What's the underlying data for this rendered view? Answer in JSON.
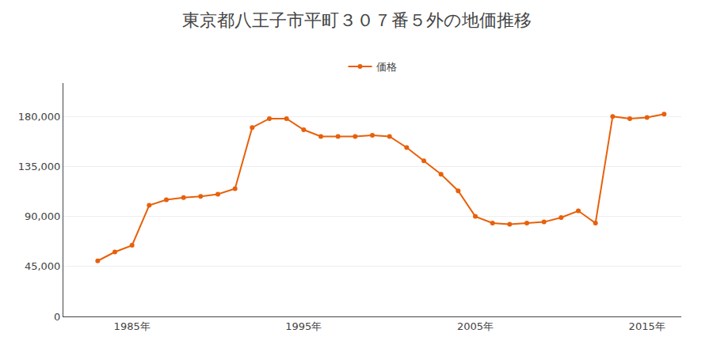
{
  "chart_data": {
    "type": "line",
    "title": "東京都八王子市平町３０７番５外の地価推移",
    "x": [
      1983,
      1984,
      1985,
      1986,
      1987,
      1988,
      1989,
      1990,
      1991,
      1992,
      1993,
      1994,
      1995,
      1996,
      1997,
      1998,
      1999,
      2000,
      2001,
      2002,
      2003,
      2004,
      2005,
      2006,
      2007,
      2008,
      2009,
      2010,
      2011,
      2012,
      2013,
      2014,
      2015,
      2016
    ],
    "series": [
      {
        "name": "価格",
        "color": "#E8600A",
        "marker": "circle",
        "values": [
          50000,
          58000,
          64000,
          100000,
          105000,
          107000,
          108000,
          110000,
          115000,
          170000,
          178000,
          178000,
          168000,
          162000,
          162000,
          162000,
          163000,
          162000,
          152000,
          140000,
          128000,
          113000,
          90000,
          84000,
          83000,
          84000,
          85000,
          89000,
          95000,
          84000,
          180000,
          178000,
          179000,
          182000
        ]
      }
    ],
    "xlim": [
      1981,
      2017
    ],
    "xticks": [
      {
        "value": 1985,
        "label": "1985年"
      },
      {
        "value": 1995,
        "label": "1995年"
      },
      {
        "value": 2005,
        "label": "2005年"
      },
      {
        "value": 2015,
        "label": "2015年"
      }
    ],
    "ylim": [
      0,
      210000
    ],
    "yticks": [
      0,
      {
        "value": 45000,
        "label": "45,000"
      },
      {
        "value": 90000,
        "label": "90,000"
      },
      {
        "value": 135000,
        "label": "135,000"
      },
      {
        "value": 180000,
        "label": "180,000"
      }
    ],
    "grid": "y",
    "legend": "top"
  }
}
